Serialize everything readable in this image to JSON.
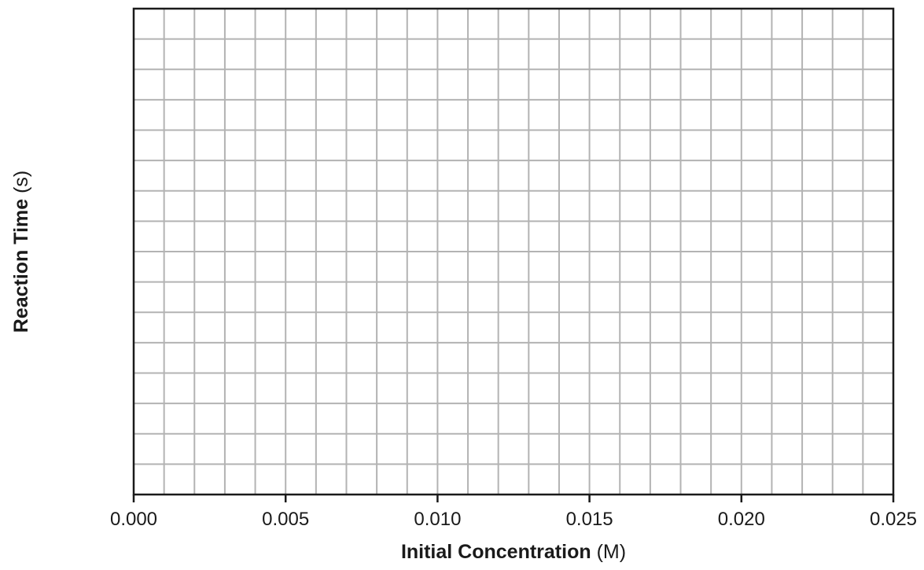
{
  "chart_data": {
    "type": "scatter",
    "title": "",
    "xlabel": {
      "main": "Initial Concentration",
      "unit": "(M)"
    },
    "ylabel": {
      "main": "Reaction Time",
      "unit": "(s)"
    },
    "xlim": [
      0,
      0.025
    ],
    "x_ticks": [
      "0.000",
      "0.005",
      "0.010",
      "0.015",
      "0.020",
      "0.025"
    ],
    "x_minor_step": 0.001,
    "y_ticks": [],
    "y_gridlines": 16,
    "grid": true,
    "series": [],
    "colors": {
      "grid": "#b3b3b3",
      "frame": "#1a1a1a"
    }
  }
}
